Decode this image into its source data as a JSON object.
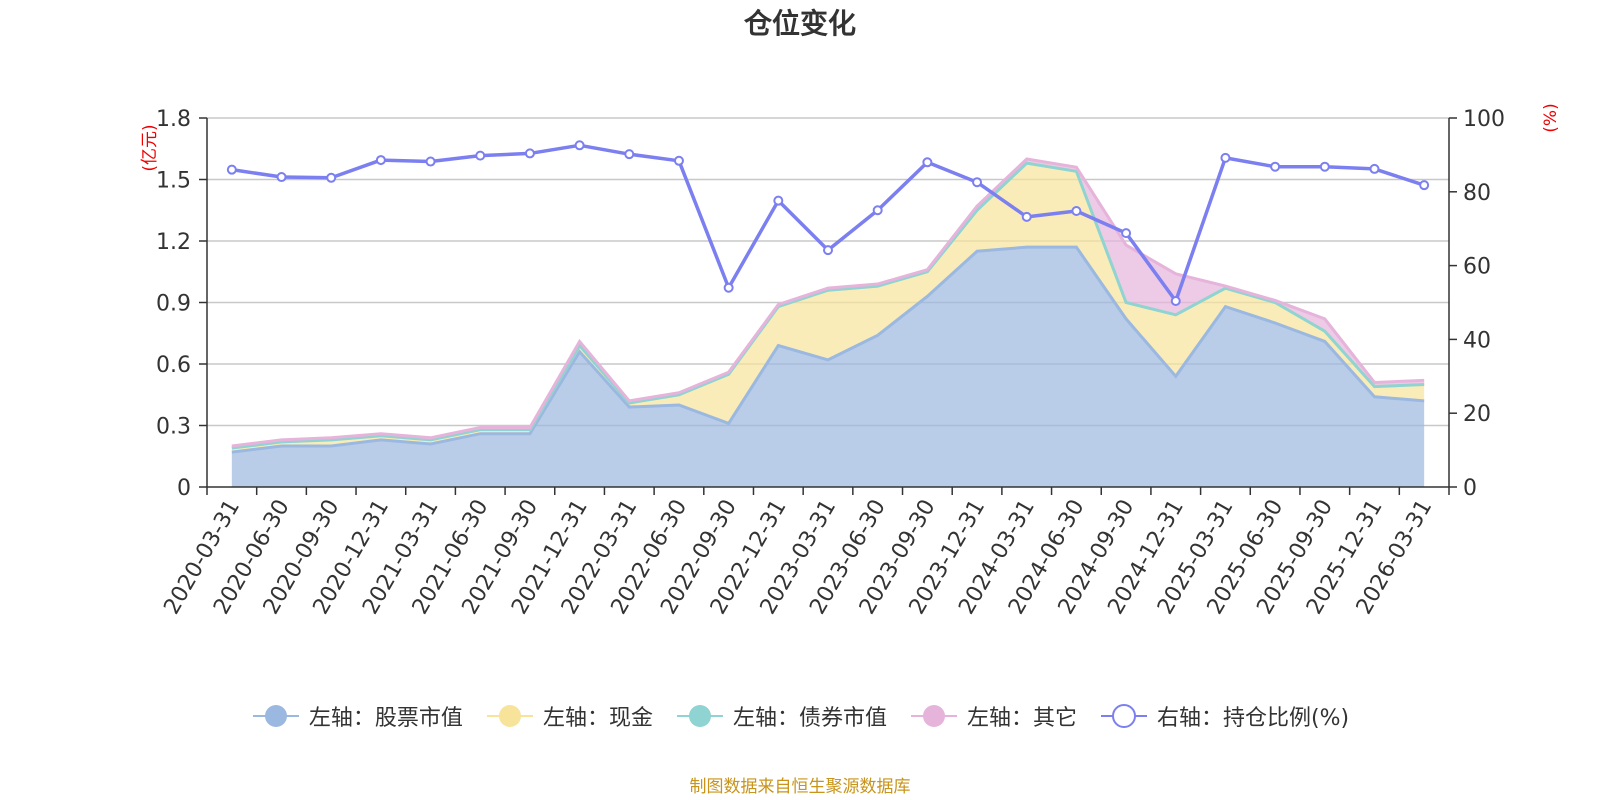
{
  "chart_data": {
    "type": "area",
    "title": "仓位变化",
    "left_axis_unit": "(亿元)",
    "right_axis_unit": "(%)",
    "ylim_left": [
      0,
      1.8
    ],
    "yticks_left": [
      "0",
      "0.3",
      "0.6",
      "0.9",
      "1.2",
      "1.5",
      "1.8"
    ],
    "ylim_right": [
      0,
      100
    ],
    "yticks_right": [
      "0",
      "20",
      "40",
      "60",
      "80",
      "100"
    ],
    "grid": true,
    "legend_position": "bottom",
    "categories": [
      "2020-03-31",
      "2020-06-30",
      "2020-09-30",
      "2020-12-31",
      "2021-03-31",
      "2021-06-30",
      "2021-09-30",
      "2021-12-31",
      "2022-03-31",
      "2022-06-30",
      "2022-09-30",
      "2022-12-31",
      "2023-03-31",
      "2023-06-30",
      "2023-09-30",
      "2023-12-31",
      "2024-03-31",
      "2024-06-30",
      "2024-09-30",
      "2024-12-31",
      "2025-03-31",
      "2025-06-30",
      "2025-09-30",
      "2025-12-31",
      "2026-03-31"
    ],
    "series": [
      {
        "name": "左轴：股票市值",
        "axis": "left",
        "color": "#9bb8e0",
        "values": [
          0.17,
          0.2,
          0.2,
          0.23,
          0.21,
          0.26,
          0.26,
          0.66,
          0.39,
          0.4,
          0.31,
          0.69,
          0.62,
          0.74,
          0.93,
          1.15,
          1.17,
          1.17,
          0.82,
          0.54,
          0.88,
          0.8,
          0.71,
          0.44,
          0.42
        ]
      },
      {
        "name": "左轴：现金",
        "axis": "left",
        "color": "#f7e49a",
        "values": [
          0.02,
          0.02,
          0.03,
          0.02,
          0.02,
          0.02,
          0.02,
          0.03,
          0.02,
          0.05,
          0.24,
          0.19,
          0.34,
          0.24,
          0.12,
          0.2,
          0.41,
          0.37,
          0.08,
          0.3,
          0.09,
          0.1,
          0.05,
          0.05,
          0.08
        ]
      },
      {
        "name": "左轴：债券市值",
        "axis": "left",
        "color": "#8fd3d3",
        "values": [
          0,
          0,
          0,
          0,
          0,
          0,
          0,
          0,
          0,
          0,
          0,
          0,
          0,
          0,
          0,
          0,
          0,
          0,
          0,
          0,
          0,
          0,
          0,
          0,
          0
        ]
      },
      {
        "name": "左轴：其它",
        "axis": "left",
        "color": "#e6b3db",
        "values": [
          0.01,
          0.01,
          0.01,
          0.01,
          0.01,
          0.01,
          0.01,
          0.02,
          0.01,
          0.01,
          0.01,
          0.01,
          0.01,
          0.01,
          0.01,
          0.02,
          0.02,
          0.02,
          0.28,
          0.2,
          0.01,
          0.01,
          0.06,
          0.02,
          0.02
        ]
      },
      {
        "name": "右轴：持仓比例(%)",
        "axis": "right",
        "color": "#7b7ff0",
        "values": [
          86,
          84,
          83.8,
          88.6,
          88.2,
          89.8,
          90.4,
          92.6,
          90.2,
          88.4,
          54,
          77.6,
          64.2,
          75,
          88,
          82.6,
          73.2,
          74.8,
          68.8,
          50.4,
          89.2,
          86.8,
          86.8,
          86.2,
          81.8
        ]
      }
    ]
  },
  "footer": "制图数据来自恒生聚源数据库"
}
